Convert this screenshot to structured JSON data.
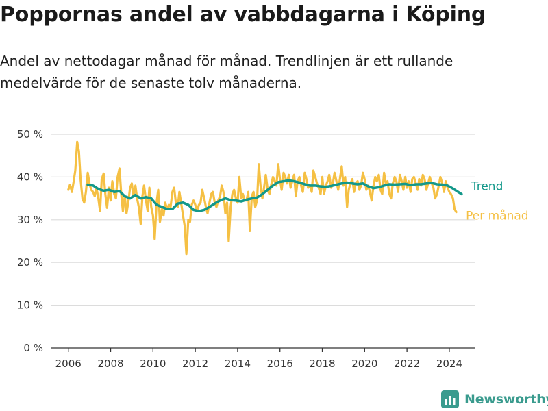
{
  "title": "Poppornas andel av vabbdagarna i Köping",
  "subtitle": "Andel av nettodagar månad för månad. Trendlinjen är ett rullande medelvärde för de senaste tolv månaderna.",
  "brand": {
    "name": "Newsworthy",
    "color": "#3a9b8e",
    "icon": "bar-chart-logo-icon"
  },
  "colors": {
    "monthly": "#f5c044",
    "trend": "#13988a",
    "grid": "#dcdcdc",
    "axis": "#333333"
  },
  "chart_data": {
    "type": "line",
    "xlabel": "",
    "ylabel": "",
    "xlim": [
      2005.2,
      2025.2
    ],
    "ylim": [
      0,
      50
    ],
    "grid": true,
    "legend_placement": "right, at line ends",
    "x_ticks": [
      2006,
      2008,
      2010,
      2012,
      2014,
      2016,
      2018,
      2020,
      2022,
      2024
    ],
    "x_tick_labels": [
      "2006",
      "2008",
      "2010",
      "2012",
      "2014",
      "2016",
      "2018",
      "2020",
      "2022",
      "2024"
    ],
    "y_ticks": [
      0,
      10,
      20,
      30,
      40,
      50
    ],
    "y_tick_labels": [
      "0 %",
      "10 %",
      "20 %",
      "30 %",
      "40 %",
      "50 %"
    ],
    "series": [
      {
        "name": "Per månad",
        "color": "#f5c044",
        "points": [
          [
            2006.0,
            37.0
          ],
          [
            2006.08,
            38.2
          ],
          [
            2006.17,
            36.5
          ],
          [
            2006.25,
            38.8
          ],
          [
            2006.33,
            41.5
          ],
          [
            2006.42,
            48.2
          ],
          [
            2006.5,
            46.0
          ],
          [
            2006.58,
            39.5
          ],
          [
            2006.67,
            35.0
          ],
          [
            2006.75,
            34.0
          ],
          [
            2006.83,
            36.5
          ],
          [
            2006.92,
            41.0
          ],
          [
            2007.0,
            38.5
          ],
          [
            2007.08,
            37.0
          ],
          [
            2007.17,
            36.5
          ],
          [
            2007.25,
            35.5
          ],
          [
            2007.33,
            37.5
          ],
          [
            2007.42,
            35.0
          ],
          [
            2007.5,
            32.0
          ],
          [
            2007.58,
            39.5
          ],
          [
            2007.67,
            40.8
          ],
          [
            2007.75,
            36.0
          ],
          [
            2007.83,
            32.8
          ],
          [
            2007.92,
            37.5
          ],
          [
            2008.0,
            34.5
          ],
          [
            2008.08,
            39.0
          ],
          [
            2008.17,
            36.0
          ],
          [
            2008.25,
            35.0
          ],
          [
            2008.33,
            40.0
          ],
          [
            2008.42,
            42.0
          ],
          [
            2008.5,
            36.0
          ],
          [
            2008.58,
            32.0
          ],
          [
            2008.67,
            35.5
          ],
          [
            2008.75,
            31.5
          ],
          [
            2008.83,
            34.0
          ],
          [
            2008.92,
            37.5
          ],
          [
            2009.0,
            38.5
          ],
          [
            2009.08,
            35.5
          ],
          [
            2009.17,
            38.0
          ],
          [
            2009.25,
            35.0
          ],
          [
            2009.33,
            33.0
          ],
          [
            2009.42,
            29.0
          ],
          [
            2009.5,
            35.5
          ],
          [
            2009.58,
            38.0
          ],
          [
            2009.67,
            34.5
          ],
          [
            2009.75,
            32.0
          ],
          [
            2009.83,
            37.5
          ],
          [
            2009.92,
            33.0
          ],
          [
            2010.0,
            31.0
          ],
          [
            2010.08,
            25.5
          ],
          [
            2010.17,
            34.0
          ],
          [
            2010.25,
            37.0
          ],
          [
            2010.33,
            29.5
          ],
          [
            2010.42,
            32.5
          ],
          [
            2010.5,
            31.0
          ],
          [
            2010.58,
            34.0
          ],
          [
            2010.67,
            32.5
          ],
          [
            2010.75,
            33.5
          ],
          [
            2010.83,
            33.0
          ],
          [
            2010.92,
            36.5
          ],
          [
            2011.0,
            37.5
          ],
          [
            2011.08,
            34.0
          ],
          [
            2011.17,
            33.0
          ],
          [
            2011.25,
            36.5
          ],
          [
            2011.33,
            34.0
          ],
          [
            2011.42,
            31.0
          ],
          [
            2011.5,
            28.5
          ],
          [
            2011.58,
            22.0
          ],
          [
            2011.67,
            30.0
          ],
          [
            2011.75,
            29.5
          ],
          [
            2011.83,
            33.5
          ],
          [
            2011.92,
            34.5
          ],
          [
            2012.0,
            33.5
          ],
          [
            2012.08,
            32.0
          ],
          [
            2012.17,
            33.5
          ],
          [
            2012.25,
            34.0
          ],
          [
            2012.33,
            37.0
          ],
          [
            2012.42,
            35.0
          ],
          [
            2012.5,
            33.0
          ],
          [
            2012.58,
            31.5
          ],
          [
            2012.67,
            34.0
          ],
          [
            2012.75,
            36.0
          ],
          [
            2012.83,
            36.5
          ],
          [
            2012.92,
            34.0
          ],
          [
            2013.0,
            33.0
          ],
          [
            2013.08,
            34.5
          ],
          [
            2013.17,
            35.5
          ],
          [
            2013.25,
            38.0
          ],
          [
            2013.33,
            36.5
          ],
          [
            2013.42,
            31.5
          ],
          [
            2013.5,
            34.0
          ],
          [
            2013.58,
            25.0
          ],
          [
            2013.67,
            33.0
          ],
          [
            2013.75,
            36.0
          ],
          [
            2013.83,
            37.0
          ],
          [
            2013.92,
            35.0
          ],
          [
            2014.0,
            34.0
          ],
          [
            2014.08,
            40.0
          ],
          [
            2014.17,
            35.0
          ],
          [
            2014.25,
            36.0
          ],
          [
            2014.33,
            34.5
          ],
          [
            2014.42,
            34.5
          ],
          [
            2014.5,
            36.5
          ],
          [
            2014.58,
            27.5
          ],
          [
            2014.67,
            35.5
          ],
          [
            2014.75,
            36.5
          ],
          [
            2014.83,
            33.0
          ],
          [
            2014.92,
            34.5
          ],
          [
            2015.0,
            43.0
          ],
          [
            2015.08,
            38.0
          ],
          [
            2015.17,
            35.0
          ],
          [
            2015.25,
            37.5
          ],
          [
            2015.33,
            40.5
          ],
          [
            2015.42,
            37.0
          ],
          [
            2015.5,
            36.0
          ],
          [
            2015.58,
            38.0
          ],
          [
            2015.67,
            40.0
          ],
          [
            2015.75,
            39.0
          ],
          [
            2015.83,
            38.0
          ],
          [
            2015.92,
            43.0
          ],
          [
            2016.0,
            39.5
          ],
          [
            2016.08,
            37.0
          ],
          [
            2016.17,
            41.0
          ],
          [
            2016.25,
            40.0
          ],
          [
            2016.33,
            38.5
          ],
          [
            2016.42,
            40.5
          ],
          [
            2016.5,
            37.5
          ],
          [
            2016.58,
            39.0
          ],
          [
            2016.67,
            40.5
          ],
          [
            2016.75,
            35.5
          ],
          [
            2016.83,
            39.0
          ],
          [
            2016.92,
            40.0
          ],
          [
            2017.0,
            38.0
          ],
          [
            2017.08,
            36.5
          ],
          [
            2017.17,
            41.0
          ],
          [
            2017.25,
            39.5
          ],
          [
            2017.33,
            37.5
          ],
          [
            2017.42,
            38.0
          ],
          [
            2017.5,
            36.5
          ],
          [
            2017.58,
            41.5
          ],
          [
            2017.67,
            40.0
          ],
          [
            2017.75,
            38.5
          ],
          [
            2017.83,
            37.5
          ],
          [
            2017.92,
            36.0
          ],
          [
            2018.0,
            40.0
          ],
          [
            2018.08,
            36.0
          ],
          [
            2018.17,
            38.0
          ],
          [
            2018.25,
            39.0
          ],
          [
            2018.33,
            40.5
          ],
          [
            2018.42,
            37.5
          ],
          [
            2018.5,
            38.5
          ],
          [
            2018.58,
            41.0
          ],
          [
            2018.67,
            39.0
          ],
          [
            2018.75,
            37.0
          ],
          [
            2018.83,
            39.5
          ],
          [
            2018.92,
            42.5
          ],
          [
            2019.0,
            38.0
          ],
          [
            2019.08,
            40.0
          ],
          [
            2019.17,
            33.0
          ],
          [
            2019.25,
            37.0
          ],
          [
            2019.33,
            38.5
          ],
          [
            2019.42,
            39.5
          ],
          [
            2019.5,
            36.5
          ],
          [
            2019.58,
            38.5
          ],
          [
            2019.67,
            39.0
          ],
          [
            2019.75,
            37.0
          ],
          [
            2019.83,
            38.0
          ],
          [
            2019.92,
            41.0
          ],
          [
            2020.0,
            39.5
          ],
          [
            2020.08,
            37.0
          ],
          [
            2020.17,
            38.0
          ],
          [
            2020.25,
            36.5
          ],
          [
            2020.33,
            34.5
          ],
          [
            2020.42,
            38.0
          ],
          [
            2020.5,
            40.0
          ],
          [
            2020.58,
            39.0
          ],
          [
            2020.67,
            40.5
          ],
          [
            2020.75,
            37.0
          ],
          [
            2020.83,
            36.0
          ],
          [
            2020.92,
            41.0
          ],
          [
            2021.0,
            38.5
          ],
          [
            2021.08,
            39.0
          ],
          [
            2021.17,
            36.0
          ],
          [
            2021.25,
            35.0
          ],
          [
            2021.33,
            38.5
          ],
          [
            2021.42,
            40.0
          ],
          [
            2021.5,
            39.0
          ],
          [
            2021.58,
            36.5
          ],
          [
            2021.67,
            40.5
          ],
          [
            2021.75,
            39.0
          ],
          [
            2021.83,
            37.0
          ],
          [
            2021.92,
            40.0
          ],
          [
            2022.0,
            37.5
          ],
          [
            2022.08,
            39.0
          ],
          [
            2022.17,
            36.5
          ],
          [
            2022.25,
            39.5
          ],
          [
            2022.33,
            40.0
          ],
          [
            2022.42,
            38.5
          ],
          [
            2022.5,
            37.0
          ],
          [
            2022.58,
            39.5
          ],
          [
            2022.67,
            38.0
          ],
          [
            2022.75,
            40.5
          ],
          [
            2022.83,
            39.5
          ],
          [
            2022.92,
            37.0
          ],
          [
            2023.0,
            38.5
          ],
          [
            2023.08,
            40.0
          ],
          [
            2023.17,
            38.5
          ],
          [
            2023.25,
            37.5
          ],
          [
            2023.33,
            35.0
          ],
          [
            2023.42,
            36.0
          ],
          [
            2023.5,
            38.0
          ],
          [
            2023.58,
            40.0
          ],
          [
            2023.67,
            38.5
          ],
          [
            2023.75,
            36.5
          ],
          [
            2023.83,
            39.0
          ],
          [
            2023.92,
            37.5
          ],
          [
            2024.0,
            36.5
          ],
          [
            2024.08,
            36.0
          ],
          [
            2024.17,
            35.0
          ],
          [
            2024.25,
            32.5
          ],
          [
            2024.33,
            31.8
          ]
        ]
      },
      {
        "name": "Trend",
        "color": "#13988a",
        "points": [
          [
            2006.92,
            38.2
          ],
          [
            2007.17,
            38.0
          ],
          [
            2007.42,
            37.2
          ],
          [
            2007.67,
            36.8
          ],
          [
            2007.92,
            37.0
          ],
          [
            2008.17,
            36.5
          ],
          [
            2008.42,
            36.7
          ],
          [
            2008.67,
            35.5
          ],
          [
            2008.92,
            35.0
          ],
          [
            2009.17,
            35.8
          ],
          [
            2009.42,
            35.0
          ],
          [
            2009.67,
            35.3
          ],
          [
            2009.92,
            35.0
          ],
          [
            2010.17,
            33.5
          ],
          [
            2010.42,
            33.0
          ],
          [
            2010.67,
            32.5
          ],
          [
            2010.92,
            32.5
          ],
          [
            2011.17,
            33.8
          ],
          [
            2011.42,
            34.0
          ],
          [
            2011.67,
            33.5
          ],
          [
            2011.92,
            32.3
          ],
          [
            2012.17,
            32.0
          ],
          [
            2012.42,
            32.3
          ],
          [
            2012.67,
            33.0
          ],
          [
            2012.92,
            33.8
          ],
          [
            2013.17,
            34.5
          ],
          [
            2013.42,
            35.0
          ],
          [
            2013.67,
            34.6
          ],
          [
            2013.92,
            34.5
          ],
          [
            2014.17,
            34.3
          ],
          [
            2014.42,
            34.7
          ],
          [
            2014.67,
            35.0
          ],
          [
            2014.92,
            35.2
          ],
          [
            2015.17,
            36.0
          ],
          [
            2015.42,
            37.0
          ],
          [
            2015.67,
            38.0
          ],
          [
            2015.92,
            38.8
          ],
          [
            2016.17,
            39.0
          ],
          [
            2016.42,
            39.2
          ],
          [
            2016.67,
            39.0
          ],
          [
            2016.92,
            38.7
          ],
          [
            2017.17,
            38.3
          ],
          [
            2017.42,
            38.0
          ],
          [
            2017.67,
            38.0
          ],
          [
            2017.92,
            37.8
          ],
          [
            2018.17,
            37.7
          ],
          [
            2018.42,
            37.9
          ],
          [
            2018.67,
            38.2
          ],
          [
            2018.92,
            38.5
          ],
          [
            2019.17,
            38.7
          ],
          [
            2019.42,
            38.5
          ],
          [
            2019.67,
            38.3
          ],
          [
            2019.92,
            38.5
          ],
          [
            2020.17,
            37.8
          ],
          [
            2020.42,
            37.4
          ],
          [
            2020.67,
            37.6
          ],
          [
            2020.92,
            38.0
          ],
          [
            2021.17,
            38.3
          ],
          [
            2021.42,
            38.2
          ],
          [
            2021.67,
            38.3
          ],
          [
            2021.92,
            38.4
          ],
          [
            2022.17,
            38.1
          ],
          [
            2022.42,
            38.3
          ],
          [
            2022.67,
            38.3
          ],
          [
            2022.92,
            38.5
          ],
          [
            2023.17,
            38.6
          ],
          [
            2023.42,
            38.3
          ],
          [
            2023.67,
            38.2
          ],
          [
            2023.92,
            38.0
          ],
          [
            2024.17,
            37.3
          ],
          [
            2024.42,
            36.5
          ],
          [
            2024.58,
            36.0
          ]
        ]
      }
    ]
  }
}
